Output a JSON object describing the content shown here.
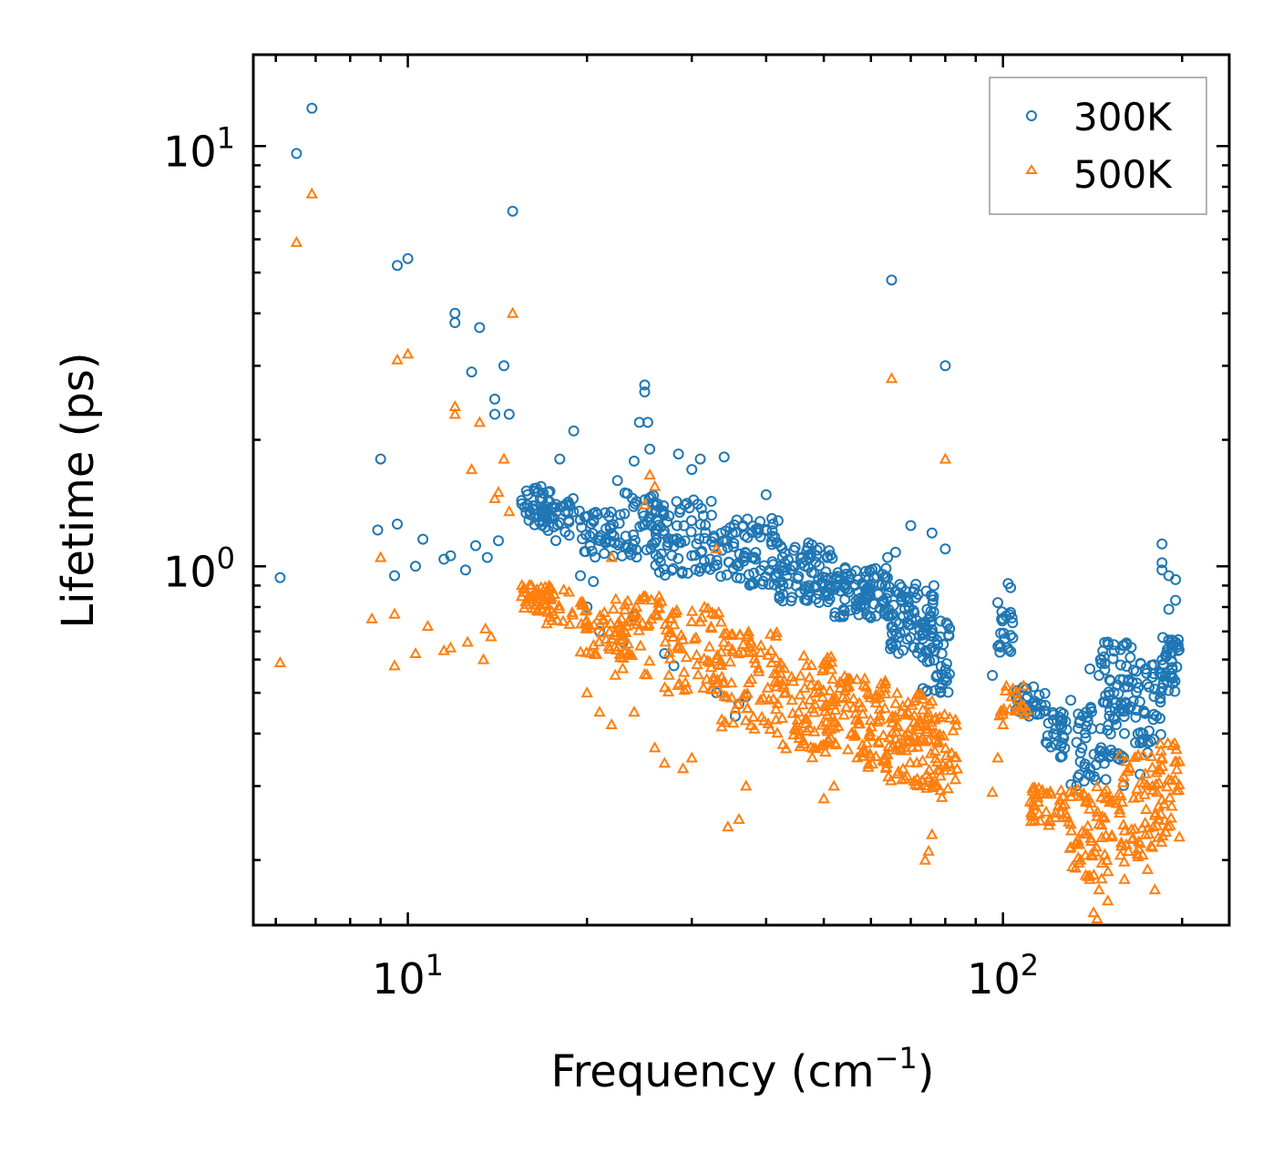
{
  "chart_data": {
    "type": "scatter",
    "xscale": "log",
    "yscale": "log",
    "xlim": [
      5.5,
      240
    ],
    "ylim": [
      0.14,
      16.5
    ],
    "xlabel": "Frequency (cm",
    "xlabel_sup": "−1",
    "xlabel_end": ")",
    "ylabel": "Lifetime (ps)",
    "x_ticks": [
      {
        "value": 10,
        "base": "10",
        "exp": "1"
      },
      {
        "value": 100,
        "base": "10",
        "exp": "2"
      }
    ],
    "y_ticks": [
      {
        "value": 1,
        "base": "10",
        "exp": "0"
      },
      {
        "value": 10,
        "base": "10",
        "exp": "1"
      }
    ],
    "legend_position": "top-right",
    "series": [
      {
        "name": "300K",
        "marker": "circle",
        "color": "#1f77b4",
        "points": [
          [
            6.1,
            0.94
          ],
          [
            6.5,
            9.6
          ],
          [
            6.9,
            12.3
          ],
          [
            9.0,
            1.8
          ],
          [
            9.6,
            5.2
          ],
          [
            10.0,
            5.4
          ],
          [
            9.6,
            1.26
          ],
          [
            9.5,
            0.95
          ],
          [
            8.9,
            1.22
          ],
          [
            10.3,
            1.0
          ],
          [
            10.6,
            1.16
          ],
          [
            11.5,
            1.04
          ],
          [
            11.8,
            1.06
          ],
          [
            12.0,
            3.8
          ],
          [
            12.0,
            4.0
          ],
          [
            12.8,
            2.9
          ],
          [
            13.2,
            3.7
          ],
          [
            12.5,
            0.98
          ],
          [
            13.0,
            1.12
          ],
          [
            13.6,
            1.05
          ],
          [
            14.0,
            2.3
          ],
          [
            14.0,
            2.5
          ],
          [
            14.2,
            1.15
          ],
          [
            14.5,
            3.0
          ],
          [
            14.8,
            2.3
          ],
          [
            15.0,
            7.0
          ],
          [
            65.0,
            4.8
          ],
          [
            80.0,
            3.0
          ],
          [
            25.0,
            2.7
          ],
          [
            25.0,
            2.6
          ],
          [
            24.5,
            2.2
          ],
          [
            25.3,
            2.2
          ],
          [
            19.0,
            2.1
          ],
          [
            25.5,
            1.9
          ],
          [
            28.5,
            1.85
          ],
          [
            34.0,
            1.82
          ],
          [
            31.0,
            1.8
          ],
          [
            18.0,
            1.8
          ],
          [
            24.0,
            1.78
          ],
          [
            22.5,
            1.6
          ],
          [
            30.0,
            1.7
          ],
          [
            40.0,
            1.48
          ],
          [
            70.0,
            1.25
          ],
          [
            76.0,
            1.2
          ],
          [
            80.0,
            1.1
          ],
          [
            66.0,
            1.08
          ],
          [
            64.0,
            1.05
          ],
          [
            102.0,
            0.91
          ],
          [
            103.0,
            0.89
          ],
          [
            98.0,
            0.82
          ],
          [
            100.0,
            0.75
          ],
          [
            96.0,
            0.55
          ],
          [
            110.0,
            0.49
          ],
          [
            185.0,
            1.13
          ],
          [
            185.0,
            1.02
          ],
          [
            185.0,
            0.98
          ],
          [
            190.0,
            0.95
          ],
          [
            195.0,
            0.93
          ],
          [
            195.0,
            0.83
          ],
          [
            190.0,
            0.79
          ],
          [
            150.0,
            0.66
          ],
          [
            140.0,
            0.57
          ],
          [
            145.0,
            0.55
          ],
          [
            165.0,
            0.53
          ],
          [
            180.0,
            0.51
          ],
          [
            130.0,
            0.48
          ],
          [
            125.0,
            0.45
          ],
          [
            155.0,
            0.42
          ],
          [
            160.0,
            0.4
          ],
          [
            170.0,
            0.38
          ],
          [
            135.0,
            0.36
          ],
          [
            140.0,
            0.33
          ],
          [
            170.0,
            0.32
          ],
          [
            175.0,
            0.36
          ],
          [
            195.0,
            0.66
          ],
          [
            197.0,
            0.63
          ],
          [
            35.5,
            0.44
          ],
          [
            36.0,
            0.47
          ],
          [
            33.0,
            0.5
          ],
          [
            37.0,
            0.49
          ],
          [
            28.0,
            0.58
          ],
          [
            27.0,
            0.62
          ],
          [
            23.0,
            0.66
          ],
          [
            21.0,
            0.7
          ],
          [
            24.0,
            0.76
          ],
          [
            20.0,
            0.8
          ],
          [
            19.5,
            0.95
          ],
          [
            20.5,
            0.92
          ]
        ],
        "bands": [
          {
            "x": [
              15.5,
              17.5
            ],
            "y": [
              1.25,
              1.55
            ],
            "n": 45
          },
          {
            "x": [
              17.0,
              19.5
            ],
            "y": [
              1.15,
              1.45
            ],
            "n": 30
          },
          {
            "x": [
              19.5,
              23.0
            ],
            "y": [
              1.05,
              1.35
            ],
            "n": 45
          },
          {
            "x": [
              23.0,
              27.0
            ],
            "y": [
              1.05,
              1.5
            ],
            "n": 50
          },
          {
            "x": [
              26.0,
              33.0
            ],
            "y": [
              0.95,
              1.45
            ],
            "n": 70
          },
          {
            "x": [
              33.0,
              42.0
            ],
            "y": [
              0.9,
              1.3
            ],
            "n": 80
          },
          {
            "x": [
              42.0,
              52.0
            ],
            "y": [
              0.82,
              1.15
            ],
            "n": 90
          },
          {
            "x": [
              52.0,
              64.0
            ],
            "y": [
              0.75,
              1.0
            ],
            "n": 90
          },
          {
            "x": [
              64.0,
              77.0
            ],
            "y": [
              0.62,
              0.92
            ],
            "n": 90
          },
          {
            "x": [
              73.0,
              82.0
            ],
            "y": [
              0.5,
              0.75
            ],
            "n": 45
          },
          {
            "x": [
              98.0,
              104.0
            ],
            "y": [
              0.62,
              0.78
            ],
            "n": 20
          },
          {
            "x": [
              104.0,
              118.0
            ],
            "y": [
              0.44,
              0.52
            ],
            "n": 30
          },
          {
            "x": [
              118.0,
              128.0
            ],
            "y": [
              0.35,
              0.46
            ],
            "n": 30
          },
          {
            "x": [
              130.0,
              160.0
            ],
            "y": [
              0.3,
              0.48
            ],
            "n": 60
          },
          {
            "x": [
              145.0,
              165.0
            ],
            "y": [
              0.45,
              0.66
            ],
            "n": 50
          },
          {
            "x": [
              165.0,
              185.0
            ],
            "y": [
              0.38,
              0.6
            ],
            "n": 45
          },
          {
            "x": [
              185.0,
              198.0
            ],
            "y": [
              0.5,
              0.68
            ],
            "n": 40
          }
        ]
      },
      {
        "name": "500K",
        "marker": "triangle",
        "color": "#ff7f0e",
        "points": [
          [
            6.1,
            0.59
          ],
          [
            6.5,
            5.9
          ],
          [
            6.9,
            7.7
          ],
          [
            8.7,
            0.75
          ],
          [
            9.0,
            1.05
          ],
          [
            9.5,
            0.77
          ],
          [
            9.5,
            0.58
          ],
          [
            9.6,
            3.1
          ],
          [
            10.0,
            3.2
          ],
          [
            10.3,
            0.62
          ],
          [
            10.8,
            0.72
          ],
          [
            11.5,
            0.63
          ],
          [
            11.8,
            0.64
          ],
          [
            12.0,
            2.3
          ],
          [
            12.0,
            2.4
          ],
          [
            12.6,
            0.66
          ],
          [
            12.8,
            1.7
          ],
          [
            13.2,
            2.2
          ],
          [
            13.4,
            0.6
          ],
          [
            13.5,
            0.71
          ],
          [
            13.8,
            0.68
          ],
          [
            14.0,
            1.45
          ],
          [
            14.2,
            1.5
          ],
          [
            14.5,
            1.8
          ],
          [
            14.8,
            1.35
          ],
          [
            15.0,
            4.0
          ],
          [
            65.0,
            2.8
          ],
          [
            80.0,
            1.8
          ],
          [
            25.5,
            1.65
          ],
          [
            26.0,
            1.55
          ],
          [
            22.0,
            1.05
          ],
          [
            25.0,
            1.4
          ],
          [
            33.0,
            1.1
          ],
          [
            36.0,
            0.25
          ],
          [
            34.5,
            0.24
          ],
          [
            37.0,
            0.3
          ],
          [
            30.0,
            0.35
          ],
          [
            29.0,
            0.33
          ],
          [
            27.0,
            0.34
          ],
          [
            26.0,
            0.37
          ],
          [
            22.0,
            0.42
          ],
          [
            21.0,
            0.45
          ],
          [
            20.0,
            0.5
          ],
          [
            24.0,
            0.45
          ],
          [
            75.0,
            0.21
          ],
          [
            74.0,
            0.2
          ],
          [
            76.0,
            0.23
          ],
          [
            135.0,
            0.2
          ],
          [
            140.0,
            0.18
          ],
          [
            145.0,
            0.17
          ],
          [
            150.0,
            0.16
          ],
          [
            160.0,
            0.18
          ],
          [
            175.0,
            0.19
          ],
          [
            180.0,
            0.17
          ],
          [
            142.0,
            0.15
          ],
          [
            144.0,
            0.145
          ],
          [
            96.0,
            0.29
          ],
          [
            98.0,
            0.35
          ],
          [
            100.0,
            0.42
          ],
          [
            50.0,
            0.28
          ],
          [
            52.0,
            0.3
          ]
        ],
        "bands": [
          {
            "x": [
              15.5,
              17.5
            ],
            "y": [
              0.78,
              0.92
            ],
            "n": 40
          },
          {
            "x": [
              17.0,
              20.0
            ],
            "y": [
              0.7,
              0.88
            ],
            "n": 30
          },
          {
            "x": [
              19.5,
              24.0
            ],
            "y": [
              0.6,
              0.82
            ],
            "n": 45
          },
          {
            "x": [
              22.0,
              28.0
            ],
            "y": [
              0.55,
              0.85
            ],
            "n": 50
          },
          {
            "x": [
              27.0,
              34.0
            ],
            "y": [
              0.5,
              0.8
            ],
            "n": 60
          },
          {
            "x": [
              33.0,
              42.0
            ],
            "y": [
              0.4,
              0.7
            ],
            "n": 80
          },
          {
            "x": [
              42.0,
              52.0
            ],
            "y": [
              0.35,
              0.62
            ],
            "n": 90
          },
          {
            "x": [
              52.0,
              64.0
            ],
            "y": [
              0.33,
              0.55
            ],
            "n": 90
          },
          {
            "x": [
              64.0,
              78.0
            ],
            "y": [
              0.3,
              0.5
            ],
            "n": 90
          },
          {
            "x": [
              74.0,
              84.0
            ],
            "y": [
              0.28,
              0.45
            ],
            "n": 45
          },
          {
            "x": [
              98.0,
              110.0
            ],
            "y": [
              0.44,
              0.52
            ],
            "n": 20
          },
          {
            "x": [
              110.0,
              128.0
            ],
            "y": [
              0.24,
              0.3
            ],
            "n": 40
          },
          {
            "x": [
              128.0,
              160.0
            ],
            "y": [
              0.18,
              0.3
            ],
            "n": 70
          },
          {
            "x": [
              155.0,
              180.0
            ],
            "y": [
              0.2,
              0.36
            ],
            "n": 50
          },
          {
            "x": [
              180.0,
              198.0
            ],
            "y": [
              0.22,
              0.38
            ],
            "n": 45
          }
        ]
      }
    ]
  }
}
